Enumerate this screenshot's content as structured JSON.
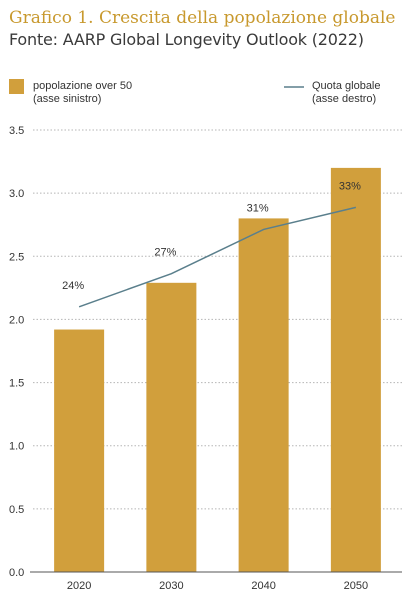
{
  "chart_data": {
    "type": "bar",
    "title": "Grafico 1. Crescita della popolazione globale",
    "subtitle": "Fonte: AARP Global Longevity Outlook (2022)",
    "categories": [
      "2020",
      "2030",
      "2040",
      "2050"
    ],
    "series": [
      {
        "name": "popolazione over 50 (asse sinistro)",
        "legend_lines": [
          "popolazione over 50",
          "(asse sinistro)"
        ],
        "type": "bar",
        "axis": "left",
        "color": "#d19f3c",
        "values": [
          1.92,
          2.29,
          2.8,
          3.2
        ]
      },
      {
        "name": "Quota globale (asse destro)",
        "legend_lines": [
          "Quota globale",
          "(asse destro)"
        ],
        "type": "line",
        "axis": "right",
        "color": "#5a7f8c",
        "values": [
          24,
          27,
          31,
          33
        ],
        "labels": [
          "24%",
          "27%",
          "31%",
          "33%"
        ]
      }
    ],
    "y_left": {
      "min": 0,
      "max": 3.5,
      "ticks": [
        "0.0",
        "0.5",
        "1.0",
        "1.5",
        "2.0",
        "2.5",
        "3.0",
        "3.5"
      ]
    },
    "y_right": {
      "min": 0,
      "max": 40
    },
    "grid": "horizontal-dotted",
    "legend_position": "top"
  }
}
